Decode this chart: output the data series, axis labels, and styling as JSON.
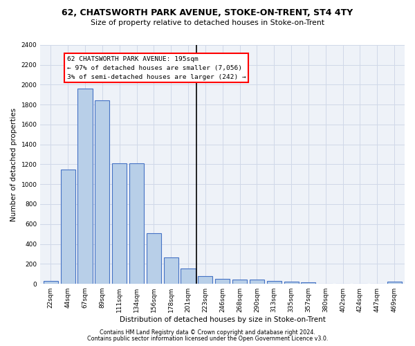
{
  "title": "62, CHATSWORTH PARK AVENUE, STOKE-ON-TRENT, ST4 4TY",
  "subtitle": "Size of property relative to detached houses in Stoke-on-Trent",
  "xlabel": "Distribution of detached houses by size in Stoke-on-Trent",
  "ylabel": "Number of detached properties",
  "bar_labels": [
    "22sqm",
    "44sqm",
    "67sqm",
    "89sqm",
    "111sqm",
    "134sqm",
    "156sqm",
    "178sqm",
    "201sqm",
    "223sqm",
    "246sqm",
    "268sqm",
    "290sqm",
    "313sqm",
    "335sqm",
    "357sqm",
    "380sqm",
    "402sqm",
    "424sqm",
    "447sqm",
    "469sqm"
  ],
  "bar_values": [
    30,
    1150,
    1960,
    1840,
    1210,
    1210,
    510,
    265,
    155,
    80,
    50,
    45,
    40,
    25,
    20,
    15,
    0,
    0,
    0,
    0,
    20
  ],
  "bar_color": "#b8cfe8",
  "bar_edge_color": "#4472c4",
  "vline_color": "black",
  "annotation_title": "62 CHATSWORTH PARK AVENUE: 195sqm",
  "annotation_line1": "← 97% of detached houses are smaller (7,056)",
  "annotation_line2": "3% of semi-detached houses are larger (242) →",
  "annotation_box_color": "white",
  "annotation_box_edge": "red",
  "ylim": [
    0,
    2400
  ],
  "yticks": [
    0,
    200,
    400,
    600,
    800,
    1000,
    1200,
    1400,
    1600,
    1800,
    2000,
    2200,
    2400
  ],
  "grid_color": "#d0d8e8",
  "background_color": "#eef2f8",
  "footnote1": "Contains HM Land Registry data © Crown copyright and database right 2024.",
  "footnote2": "Contains public sector information licensed under the Open Government Licence v3.0."
}
